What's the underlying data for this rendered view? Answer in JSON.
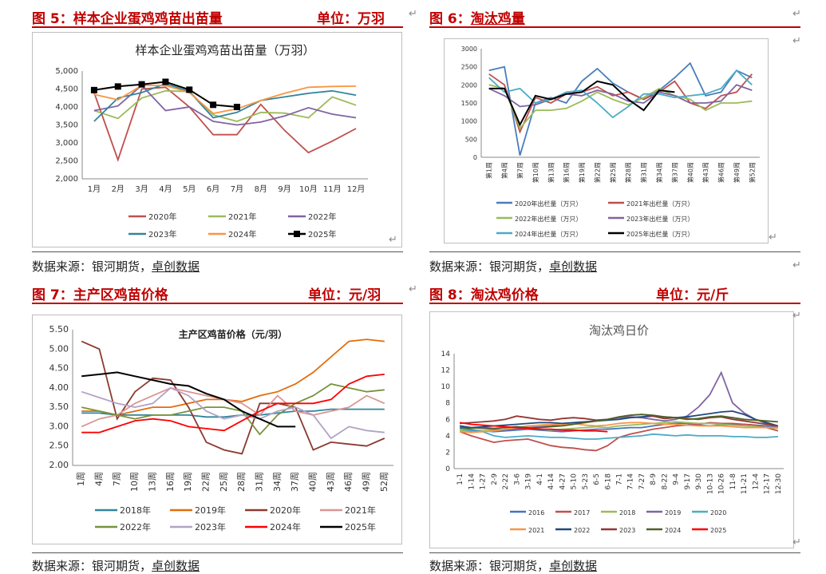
{
  "panels": {
    "p5": {
      "title": "图 5：样本企业蛋鸡鸡苗出苗量",
      "unit": "单位：万羽",
      "source_prefix": "数据来源：银河期货，",
      "source_link": "卓创数据"
    },
    "p6": {
      "title_prefix": "图 6：",
      "title_link": "淘汰鸡量",
      "unit": "",
      "source_prefix": "数据来源：银河期货，",
      "source_link": "卓创数据"
    },
    "p7": {
      "title": "图 7：主产区鸡苗价格",
      "unit": "单位：元/羽",
      "source_prefix": "数据来源：银河期货，",
      "source_link": "卓创数据"
    },
    "p8": {
      "title": "图 8：淘汰鸡价格",
      "unit": "单位：元/斤",
      "source_prefix": "数据来源：银河期货，",
      "source_link": "卓创数据"
    }
  },
  "colors": {
    "title_red": "#c00000"
  },
  "chart_data": [
    {
      "id": "c5",
      "type": "line",
      "title": "样本企业蛋鸡鸡苗出苗量（万羽）",
      "categories": [
        "1月",
        "2月",
        "3月",
        "4月",
        "5月",
        "6月",
        "7月",
        "8月",
        "9月",
        "10月",
        "11月",
        "12月"
      ],
      "ylim": [
        2000,
        5000
      ],
      "yticks": [
        "2,000",
        "2,500",
        "3,000",
        "3,500",
        "4,000",
        "4,500",
        "5,000"
      ],
      "series": [
        {
          "name": "2020年",
          "color": "#c0504d",
          "values": [
            4400,
            2530,
            4500,
            4550,
            4000,
            3230,
            3230,
            4070,
            3350,
            2730,
            3050,
            3400
          ]
        },
        {
          "name": "2021年",
          "color": "#9bbb59",
          "values": [
            3900,
            3680,
            4250,
            4450,
            4430,
            3780,
            3600,
            3850,
            3830,
            3700,
            4280,
            4050
          ]
        },
        {
          "name": "2022年",
          "color": "#8064a2",
          "values": [
            3900,
            4030,
            4600,
            3900,
            4000,
            3600,
            3500,
            3580,
            3750,
            3980,
            3800,
            3700
          ]
        },
        {
          "name": "2023年",
          "color": "#31859c",
          "values": [
            3600,
            4250,
            4400,
            4650,
            4430,
            3700,
            3850,
            4180,
            4280,
            4380,
            4450,
            4330
          ]
        },
        {
          "name": "2024年",
          "color": "#f79646",
          "values": [
            4350,
            4200,
            4600,
            4600,
            4400,
            3820,
            3950,
            4180,
            4380,
            4550,
            4570,
            4580
          ]
        },
        {
          "name": "2025年",
          "color": "#000000",
          "values": [
            4470,
            4570,
            4630,
            4700,
            4480,
            4060,
            4000,
            null,
            null,
            null,
            null,
            null
          ]
        }
      ]
    },
    {
      "id": "c6",
      "type": "line",
      "title": "",
      "categories": [
        "第1周",
        "第4周",
        "第7周",
        "第10周",
        "第13周",
        "第16周",
        "第19周",
        "第22周",
        "第25周",
        "第28周",
        "第31周",
        "第34周",
        "第37周",
        "第40周",
        "第43周",
        "第46周",
        "第49周",
        "第52周"
      ],
      "ylim": [
        0,
        3000
      ],
      "yticks": [
        "0",
        "500",
        "1000",
        "1500",
        "2000",
        "2500",
        "3000"
      ],
      "series": [
        {
          "name": "2020年出栏量（万只）",
          "color": "#4a7ebb",
          "values": [
            2400,
            2500,
            50,
            1500,
            1650,
            1500,
            2100,
            2450,
            2050,
            1800,
            1600,
            1850,
            2200,
            2600,
            1700,
            1800,
            2400,
            2200
          ]
        },
        {
          "name": "2021年出栏量（万只）",
          "color": "#c0504d",
          "values": [
            2300,
            2000,
            700,
            1650,
            1500,
            1750,
            1800,
            1950,
            1700,
            1800,
            1600,
            1800,
            2100,
            1500,
            1350,
            1700,
            1800,
            2300
          ]
        },
        {
          "name": "2022年出栏量（万只）",
          "color": "#9bbb59",
          "values": [
            2000,
            1900,
            800,
            1300,
            1300,
            1350,
            1550,
            1800,
            1600,
            1450,
            1650,
            1900,
            1700,
            1600,
            1300,
            1500,
            1500,
            1550
          ]
        },
        {
          "name": "2023年出栏量（万只）",
          "color": "#8064a2",
          "values": [
            1900,
            1700,
            1400,
            1450,
            1600,
            1750,
            1700,
            1850,
            1750,
            1550,
            1500,
            1800,
            1700,
            1500,
            1500,
            1550,
            2000,
            1850
          ]
        },
        {
          "name": "2024年出栏量（万只）",
          "color": "#4bacc6",
          "values": [
            2200,
            1800,
            1900,
            1500,
            1600,
            1800,
            1850,
            1500,
            1100,
            1400,
            1750,
            1750,
            1650,
            1700,
            1750,
            1900,
            2400,
            2000
          ]
        },
        {
          "name": "2025年出栏量（万只）",
          "color": "#000000",
          "values": [
            1900,
            1900,
            900,
            1700,
            1600,
            1750,
            1800,
            2100,
            2000,
            1600,
            1300,
            1850,
            1800,
            null,
            null,
            null,
            null,
            null
          ]
        }
      ]
    },
    {
      "id": "c7",
      "type": "line",
      "title": "主产区鸡苗价格（元/羽）",
      "categories": [
        "1周",
        "4周",
        "7周",
        "10周",
        "13周",
        "16周",
        "19周",
        "22周",
        "25周",
        "28周",
        "31周",
        "34周",
        "37周",
        "40周",
        "43周",
        "46周",
        "49周",
        "52周"
      ],
      "ylim": [
        2.0,
        5.5
      ],
      "yticks": [
        "2.00",
        "2.50",
        "3.00",
        "3.50",
        "4.00",
        "4.50",
        "5.00",
        "5.50"
      ],
      "series": [
        {
          "name": "2018年",
          "color": "#31859c",
          "values": [
            3.35,
            3.35,
            3.3,
            3.3,
            3.3,
            3.3,
            3.3,
            3.25,
            3.25,
            3.3,
            3.3,
            3.35,
            3.4,
            3.4,
            3.45,
            3.45,
            3.45,
            3.45
          ]
        },
        {
          "name": "2019年",
          "color": "#e46c0a",
          "values": [
            3.4,
            3.4,
            3.3,
            3.4,
            3.5,
            3.5,
            3.6,
            3.7,
            3.7,
            3.65,
            3.8,
            3.9,
            4.1,
            4.4,
            4.8,
            5.2,
            5.25,
            5.2
          ]
        },
        {
          "name": "2020年",
          "color": "#8b3a2e",
          "values": [
            5.2,
            5.0,
            3.2,
            3.9,
            4.25,
            4.2,
            3.5,
            2.6,
            2.4,
            2.3,
            3.6,
            3.6,
            3.5,
            2.4,
            2.6,
            2.55,
            2.5,
            2.7
          ]
        },
        {
          "name": "2021年",
          "color": "#d99694",
          "values": [
            3.0,
            3.2,
            3.3,
            3.6,
            3.8,
            4.0,
            3.9,
            3.8,
            3.7,
            3.6,
            3.3,
            3.8,
            3.4,
            3.3,
            3.4,
            3.5,
            3.8,
            3.6
          ]
        },
        {
          "name": "2022年",
          "color": "#77933c",
          "values": [
            3.5,
            3.4,
            3.3,
            3.2,
            3.3,
            3.3,
            3.4,
            3.5,
            3.5,
            3.4,
            2.8,
            3.3,
            3.6,
            3.8,
            4.1,
            4.0,
            3.9,
            3.95
          ]
        },
        {
          "name": "2023年",
          "color": "#b3a2c7",
          "values": [
            3.9,
            3.75,
            3.6,
            3.5,
            3.6,
            4.0,
            3.8,
            3.4,
            3.2,
            3.3,
            3.2,
            3.4,
            3.5,
            3.3,
            2.7,
            3.0,
            2.9,
            2.85
          ]
        },
        {
          "name": "2024年",
          "color": "#ff0000",
          "values": [
            2.85,
            2.85,
            3.0,
            3.15,
            3.2,
            3.15,
            3.0,
            2.95,
            2.9,
            3.15,
            3.4,
            3.6,
            3.6,
            3.6,
            3.7,
            4.1,
            4.3,
            4.35
          ]
        },
        {
          "name": "2025年",
          "color": "#000000",
          "values": [
            4.3,
            4.35,
            4.4,
            4.3,
            4.2,
            4.1,
            4.05,
            3.85,
            3.7,
            3.4,
            3.2,
            3.0,
            3.0,
            null,
            null,
            null,
            null,
            null
          ]
        }
      ]
    },
    {
      "id": "c8",
      "type": "line",
      "title": "淘汰鸡日价",
      "categories": [
        "1-1",
        "1-14",
        "1-27",
        "2-9",
        "2-22",
        "3-6",
        "3-19",
        "4-1",
        "4-14",
        "4-27",
        "5-10",
        "5-23",
        "6-5",
        "6-18",
        "7-1",
        "7-14",
        "7-27",
        "8-9",
        "8-22",
        "9-4",
        "9-17",
        "9-30",
        "10-13",
        "10-26",
        "11-8",
        "11-21",
        "12-4",
        "12-17",
        "12-30"
      ],
      "ylim": [
        0,
        14
      ],
      "yticks": [
        "0",
        "2",
        "4",
        "6",
        "8",
        "10",
        "12",
        "14"
      ],
      "series": [
        {
          "name": "2016",
          "color": "#4472c4",
          "values": [
            5.0,
            4.7,
            4.6,
            4.5,
            4.6,
            4.7,
            4.8,
            4.7,
            4.6,
            4.5,
            4.6,
            4.7,
            4.8,
            4.8,
            4.9,
            5.0,
            5.0,
            5.2,
            5.4,
            5.5,
            5.5,
            5.3,
            5.2,
            5.3,
            5.4,
            5.4,
            5.3,
            5.2,
            5.0
          ]
        },
        {
          "name": "2017",
          "color": "#c0504d",
          "values": [
            4.5,
            4.0,
            3.6,
            3.2,
            3.4,
            3.5,
            3.6,
            3.2,
            2.8,
            2.6,
            2.5,
            2.3,
            2.2,
            2.8,
            3.8,
            4.2,
            4.5,
            4.8,
            5.0,
            5.2,
            5.3,
            5.4,
            5.6,
            5.5,
            5.5,
            5.4,
            5.3,
            5.0,
            4.6
          ]
        },
        {
          "name": "2018",
          "color": "#9bbb59",
          "values": [
            4.7,
            4.5,
            4.6,
            4.7,
            4.8,
            4.9,
            5.0,
            4.8,
            4.7,
            4.8,
            4.9,
            5.0,
            5.1,
            5.0,
            5.2,
            5.3,
            5.4,
            5.5,
            5.6,
            5.7,
            5.6,
            5.5,
            5.5,
            5.4,
            5.3,
            5.2,
            5.1,
            5.0,
            4.9
          ]
        },
        {
          "name": "2019",
          "color": "#8064a2",
          "values": [
            5.2,
            5.0,
            4.9,
            4.8,
            4.7,
            4.8,
            5.0,
            5.1,
            5.2,
            5.4,
            5.5,
            5.6,
            5.8,
            6.0,
            6.2,
            6.3,
            6.2,
            6.0,
            5.8,
            6.0,
            6.4,
            7.5,
            9.0,
            11.7,
            8.0,
            6.8,
            6.0,
            5.5,
            5.0
          ]
        },
        {
          "name": "2020",
          "color": "#4bacc6",
          "values": [
            4.9,
            4.6,
            4.5,
            4.0,
            3.8,
            3.9,
            4.0,
            3.9,
            3.8,
            3.8,
            3.7,
            3.6,
            3.6,
            3.7,
            3.8,
            3.9,
            4.0,
            4.2,
            4.1,
            4.0,
            4.1,
            4.0,
            4.0,
            4.0,
            3.9,
            3.9,
            3.8,
            3.8,
            3.9
          ]
        },
        {
          "name": "2021",
          "color": "#f79646",
          "values": [
            4.5,
            4.4,
            4.5,
            4.6,
            4.8,
            5.0,
            5.2,
            5.3,
            5.4,
            5.4,
            5.5,
            5.3,
            5.2,
            5.3,
            5.5,
            5.6,
            5.6,
            5.5,
            5.4,
            5.4,
            5.3,
            5.2,
            5.2,
            5.2,
            5.1,
            5.0,
            5.0,
            5.0,
            5.0
          ]
        },
        {
          "name": "2022",
          "color": "#1f497d",
          "values": [
            5.2,
            5.0,
            5.1,
            5.2,
            5.3,
            5.4,
            5.5,
            5.6,
            5.6,
            5.5,
            5.6,
            5.7,
            5.8,
            5.9,
            6.0,
            6.2,
            6.3,
            6.4,
            6.3,
            6.2,
            6.3,
            6.5,
            6.7,
            6.9,
            7.0,
            6.6,
            6.0,
            5.6,
            5.2
          ]
        },
        {
          "name": "2023",
          "color": "#943634",
          "values": [
            5.5,
            5.6,
            5.7,
            5.8,
            6.0,
            6.4,
            6.2,
            6.0,
            5.9,
            6.1,
            6.2,
            6.1,
            5.9,
            6.0,
            6.3,
            6.5,
            6.6,
            6.4,
            6.1,
            6.2,
            6.1,
            6.0,
            6.2,
            6.3,
            6.0,
            5.8,
            5.6,
            5.4,
            5.2
          ]
        },
        {
          "name": "2024",
          "color": "#4f6228",
          "values": [
            5.0,
            4.9,
            5.0,
            4.9,
            5.0,
            5.1,
            5.0,
            5.0,
            5.1,
            5.2,
            5.4,
            5.6,
            5.8,
            6.0,
            6.3,
            6.5,
            6.6,
            6.5,
            6.3,
            6.2,
            6.0,
            6.1,
            6.3,
            6.4,
            6.2,
            6.0,
            5.9,
            5.8,
            5.7
          ]
        },
        {
          "name": "2025",
          "color": "#ff0000",
          "values": [
            5.6,
            5.4,
            5.3,
            5.2,
            5.1,
            5.0,
            4.9,
            4.8,
            4.8,
            4.7,
            4.7,
            4.6,
            4.6,
            4.5,
            null,
            null,
            null,
            null,
            null,
            null,
            null,
            null,
            null,
            null,
            null,
            null,
            null,
            null,
            null
          ]
        }
      ]
    }
  ]
}
